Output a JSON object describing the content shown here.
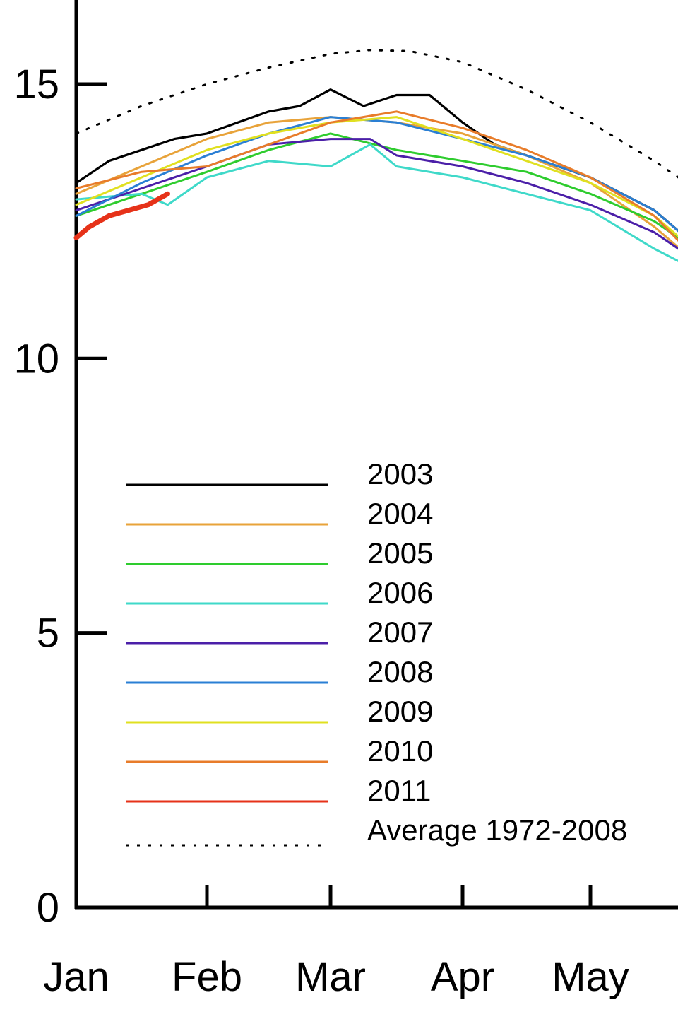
{
  "chart_data": {
    "type": "line",
    "title": "",
    "xlabel": "",
    "ylabel": "",
    "ylim": [
      0,
      15
    ],
    "xlim": [
      "Jan",
      "Jun"
    ],
    "grid": false,
    "legend_position": "bottom-left",
    "x_tick_labels": [
      "Jan",
      "Feb",
      "Mar",
      "Apr",
      "May"
    ],
    "y_ticks": [
      0,
      5,
      10,
      15
    ],
    "series": [
      {
        "name": "2003",
        "color": "#000000",
        "style": "solid",
        "x": [
          0,
          0.25,
          0.5,
          0.75,
          1.0,
          1.25,
          1.5,
          1.75,
          2.0,
          2.25,
          2.5,
          2.75,
          3.0,
          3.25,
          3.5,
          3.75,
          4.0,
          4.25,
          4.5,
          4.75
        ],
        "y": [
          13.2,
          13.6,
          13.8,
          14.0,
          14.1,
          14.3,
          14.5,
          14.6,
          14.9,
          14.6,
          14.8,
          14.8,
          14.3,
          13.9,
          13.7,
          13.5,
          13.3,
          13.0,
          12.7,
          12.2
        ]
      },
      {
        "name": "2004",
        "color": "#e8a33a",
        "style": "solid",
        "x": [
          0,
          0.5,
          1.0,
          1.5,
          2.0,
          2.5,
          3.0,
          3.5,
          4.0,
          4.5,
          4.75
        ],
        "y": [
          13.0,
          13.5,
          14.0,
          14.3,
          14.4,
          14.3,
          14.1,
          13.7,
          13.2,
          12.4,
          11.9
        ]
      },
      {
        "name": "2005",
        "color": "#2ecc2e",
        "style": "solid",
        "x": [
          0,
          0.5,
          1.0,
          1.5,
          2.0,
          2.5,
          3.0,
          3.5,
          4.0,
          4.5,
          4.75
        ],
        "y": [
          12.6,
          13.0,
          13.4,
          13.8,
          14.1,
          13.8,
          13.6,
          13.4,
          13.0,
          12.5,
          12.1
        ]
      },
      {
        "name": "2006",
        "color": "#3fd9c9",
        "style": "solid",
        "x": [
          0,
          0.5,
          0.7,
          1.0,
          1.5,
          2.0,
          2.3,
          2.5,
          3.0,
          3.5,
          4.0,
          4.5,
          4.75
        ],
        "y": [
          12.9,
          13.0,
          12.8,
          13.3,
          13.6,
          13.5,
          13.9,
          13.5,
          13.3,
          13.0,
          12.7,
          12.0,
          11.7
        ]
      },
      {
        "name": "2007",
        "color": "#4b1fa8",
        "style": "solid",
        "x": [
          0,
          0.5,
          1.0,
          1.5,
          2.0,
          2.3,
          2.5,
          3.0,
          3.5,
          4.0,
          4.5,
          4.75
        ],
        "y": [
          12.7,
          13.1,
          13.5,
          13.9,
          14.0,
          14.0,
          13.7,
          13.5,
          13.2,
          12.8,
          12.3,
          11.9
        ]
      },
      {
        "name": "2008",
        "color": "#2a7fd4",
        "style": "solid",
        "x": [
          0,
          0.5,
          1.0,
          1.5,
          2.0,
          2.5,
          3.0,
          3.5,
          4.0,
          4.5,
          4.75
        ],
        "y": [
          12.6,
          13.2,
          13.7,
          14.1,
          14.4,
          14.3,
          14.0,
          13.7,
          13.3,
          12.7,
          12.2
        ]
      },
      {
        "name": "2009",
        "color": "#e0e020",
        "style": "solid",
        "x": [
          0,
          0.5,
          1.0,
          1.5,
          2.0,
          2.5,
          3.0,
          3.5,
          4.0,
          4.5,
          4.75
        ],
        "y": [
          12.8,
          13.3,
          13.8,
          14.1,
          14.3,
          14.4,
          14.0,
          13.6,
          13.2,
          12.6,
          12.1
        ]
      },
      {
        "name": "2010",
        "color": "#e87c2a",
        "style": "solid",
        "x": [
          0,
          0.5,
          1.0,
          1.5,
          2.0,
          2.5,
          3.0,
          3.5,
          4.0,
          4.5,
          4.75
        ],
        "y": [
          13.1,
          13.4,
          13.5,
          13.9,
          14.3,
          14.5,
          14.2,
          13.8,
          13.3,
          12.6,
          12.0
        ]
      },
      {
        "name": "2011",
        "color": "#e63219",
        "style": "solid",
        "x": [
          0,
          0.1,
          0.25,
          0.4,
          0.55,
          0.7
        ],
        "y": [
          12.2,
          12.4,
          12.6,
          12.7,
          12.8,
          13.0
        ]
      },
      {
        "name": "Average 1972-2008",
        "color": "#000000",
        "style": "dotted",
        "x": [
          0,
          0.5,
          1.0,
          1.5,
          2.0,
          2.3,
          2.6,
          3.0,
          3.5,
          4.0,
          4.5,
          4.75
        ],
        "y": [
          14.1,
          14.6,
          15.0,
          15.3,
          15.55,
          15.62,
          15.6,
          15.4,
          14.9,
          14.3,
          13.6,
          13.2
        ]
      }
    ]
  }
}
